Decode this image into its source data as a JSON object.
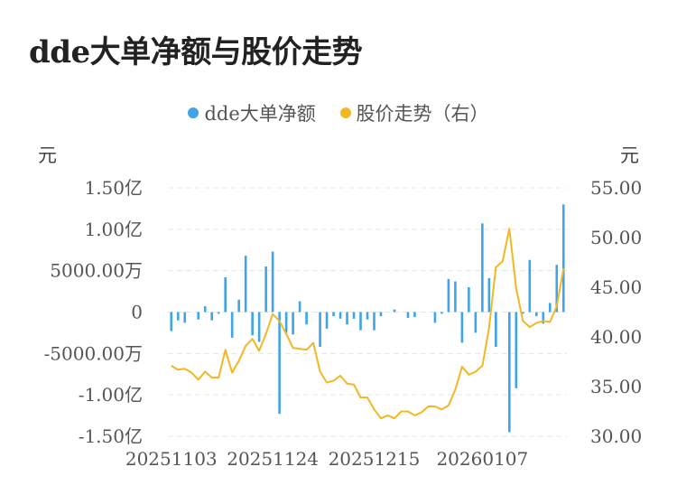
{
  "title": "dde大单净额与股价走势",
  "legend": [
    {
      "label": "dde大单净额",
      "color": "#3fa4e8"
    },
    {
      "label": "股价走势（右）",
      "color": "#f4b724"
    }
  ],
  "units": {
    "left": "元",
    "right": "元"
  },
  "chart_data": {
    "type": "bar+line",
    "left_axis": {
      "ticks": [
        "1.50亿",
        "1.00亿",
        "5000.00万",
        "0",
        "-5000.00万",
        "-1.00亿",
        "-1.50亿"
      ],
      "range": [
        -150000000,
        150000000
      ]
    },
    "right_axis": {
      "ticks": [
        "55.00",
        "50.00",
        "45.00",
        "40.00",
        "35.00",
        "30.00"
      ],
      "range": [
        30,
        55
      ]
    },
    "x_ticks": [
      "20251103",
      "20251124",
      "20251215",
      "20260107"
    ],
    "bar_color": "#3fa4e8",
    "line_color": "#f4b724",
    "series": [
      {
        "name": "dde大单净额",
        "type": "bar",
        "unit": "亿元",
        "values": [
          -0.23,
          -0.1,
          -0.13,
          0.0,
          -0.09,
          0.07,
          -0.1,
          -0.02,
          0.42,
          -0.31,
          0.15,
          0.68,
          -0.28,
          -0.36,
          0.55,
          0.73,
          -1.23,
          -0.25,
          -0.27,
          0.13,
          -0.15,
          0.0,
          -0.42,
          -0.2,
          -0.05,
          -0.08,
          -0.15,
          -0.08,
          -0.22,
          -0.09,
          -0.22,
          -0.05,
          0.0,
          0.03,
          0.0,
          -0.07,
          -0.06,
          0.0,
          0.0,
          -0.13,
          -0.02,
          0.4,
          0.37,
          -0.37,
          0.3,
          -0.25,
          1.07,
          0.41,
          -0.42,
          0.0,
          -1.45,
          -0.92,
          -0.02,
          0.63,
          -0.05,
          -0.14,
          0.11,
          0.57,
          1.3
        ]
      },
      {
        "name": "股价走势（右）",
        "type": "line",
        "values": [
          37.1,
          36.7,
          36.8,
          36.4,
          35.7,
          36.5,
          35.9,
          35.9,
          38.7,
          36.4,
          37.6,
          39.1,
          39.8,
          38.6,
          40.3,
          42.3,
          41.6,
          40.3,
          38.9,
          38.8,
          38.7,
          39.4,
          36.5,
          35.4,
          35.6,
          36.1,
          35.3,
          35.2,
          33.9,
          33.9,
          32.7,
          31.8,
          32.1,
          31.8,
          32.5,
          32.5,
          32.1,
          32.4,
          33.0,
          33.0,
          32.7,
          33.1,
          34.7,
          37.0,
          36.2,
          36.5,
          37.1,
          40.9,
          47.0,
          47.6,
          50.9,
          44.9,
          41.6,
          41.0,
          41.4,
          41.6,
          41.5,
          43.1,
          46.9
        ]
      }
    ]
  }
}
